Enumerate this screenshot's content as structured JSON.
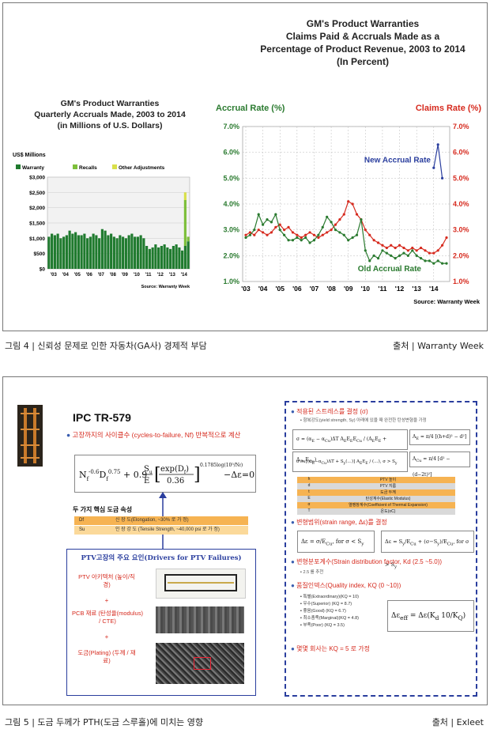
{
  "figure4": {
    "main_title": [
      "GM's Product Warranties",
      "Claims Paid & Accruals Made as a",
      "Percentage of Product Revenue, 2003 to 2014",
      "(In Percent)"
    ],
    "left_title": [
      "GM's Product Warranties",
      "Quarterly Accruals Made, 2003 to 2014",
      "(in Millions of U.S. Dollars)"
    ],
    "caption": "그림 4 | 신뢰성 문제로 인한 자동차(GA사) 경제적 부담",
    "source": "출처 | Warranty Week"
  },
  "bar_chart": {
    "type": "bar",
    "ylabel": "US$ Millions",
    "legend": [
      "Warranty",
      "Recalls",
      "Other Adjustments"
    ],
    "colors": {
      "warranty": "#1f7a2e",
      "recalls": "#7dbf3a",
      "other": "#d9e04a"
    },
    "yticks": [
      "$3,000",
      "$2,500",
      "$2,000",
      "$1,500",
      "$1,000",
      "$500",
      "$0"
    ],
    "ylim": [
      0,
      3000
    ],
    "xticks": [
      "'03",
      "'04",
      "'05",
      "'06",
      "'07",
      "'08",
      "'09",
      "'10",
      "'11",
      "'12",
      "'13",
      "'14"
    ],
    "warranty": [
      1050,
      1150,
      1100,
      1150,
      1000,
      1050,
      1100,
      1250,
      1150,
      1200,
      1100,
      1100,
      1150,
      1000,
      1050,
      1150,
      1100,
      1000,
      1300,
      1250,
      1100,
      1150,
      1050,
      1000,
      1100,
      1050,
      1000,
      1100,
      1150,
      1050,
      1050,
      1100,
      1000,
      750,
      650,
      700,
      800,
      700,
      750,
      800,
      700,
      650,
      750,
      800,
      700,
      600,
      750,
      900
    ],
    "recalls": [
      0,
      0,
      0,
      0,
      0,
      0,
      0,
      0,
      0,
      0,
      0,
      0,
      0,
      0,
      0,
      0,
      0,
      0,
      0,
      0,
      0,
      0,
      0,
      0,
      0,
      0,
      0,
      0,
      0,
      0,
      0,
      0,
      0,
      0,
      0,
      0,
      0,
      0,
      0,
      0,
      0,
      0,
      0,
      0,
      0,
      0,
      1500,
      150
    ],
    "other": [
      0,
      0,
      0,
      0,
      0,
      0,
      0,
      0,
      0,
      0,
      0,
      0,
      0,
      0,
      0,
      0,
      0,
      0,
      0,
      0,
      0,
      0,
      0,
      0,
      0,
      0,
      0,
      0,
      0,
      0,
      0,
      0,
      0,
      0,
      0,
      0,
      0,
      0,
      0,
      0,
      0,
      0,
      0,
      0,
      0,
      0,
      250,
      0
    ],
    "source": "Source: Warranty Week"
  },
  "chart_data": [
    {
      "type": "line",
      "left_axis_title": "Accrual Rate (%)",
      "right_axis_title": "Claims Rate (%)",
      "yticks": [
        "7.0%",
        "6.0%",
        "5.0%",
        "4.0%",
        "3.0%",
        "2.0%",
        "1.0%"
      ],
      "ylim": [
        1.0,
        7.0
      ],
      "xticks": [
        "'03",
        "'04",
        "'05",
        "'06",
        "'07",
        "'08",
        "'09",
        "'10",
        "'11",
        "'12",
        "'13",
        "'14"
      ],
      "annotations": [
        "New Accrual Rate",
        "Old Accrual Rate"
      ],
      "source": "Source: Warranty Week",
      "series": [
        {
          "name": "Claims",
          "color": "#d62a1e",
          "values": [
            2.8,
            2.9,
            2.8,
            3.0,
            2.9,
            2.8,
            2.9,
            3.1,
            3.2,
            3.0,
            3.1,
            2.9,
            2.8,
            2.7,
            2.8,
            2.9,
            2.8,
            2.7,
            2.8,
            2.9,
            3.0,
            3.2,
            3.4,
            3.6,
            4.1,
            4.0,
            3.6,
            3.4,
            3.0,
            2.8,
            2.6,
            2.5,
            2.4,
            2.3,
            2.4,
            2.3,
            2.4,
            2.3,
            2.2,
            2.3,
            2.2,
            2.3,
            2.2,
            2.1,
            2.1,
            2.2,
            2.4,
            2.7
          ]
        },
        {
          "name": "Accrual",
          "color": "#2a7a2f",
          "values": [
            2.7,
            2.8,
            3.0,
            3.6,
            3.2,
            3.4,
            3.3,
            3.6,
            3.0,
            2.8,
            2.6,
            2.6,
            2.7,
            2.6,
            2.7,
            2.5,
            2.6,
            2.8,
            3.1,
            3.5,
            3.3,
            3.0,
            2.9,
            2.8,
            2.6,
            2.7,
            2.8,
            3.4,
            2.2,
            1.8,
            2.0,
            1.9,
            2.2,
            2.1,
            2.0,
            1.9,
            2.0,
            2.1,
            2.0,
            2.2,
            2.0,
            1.9,
            1.8,
            1.8,
            1.7,
            1.8,
            1.7,
            1.7
          ]
        },
        {
          "name": "New Accrual",
          "color": "#2a3e9e",
          "values": [
            null,
            null,
            null,
            null,
            null,
            null,
            null,
            null,
            null,
            null,
            null,
            null,
            null,
            null,
            null,
            null,
            null,
            null,
            null,
            null,
            null,
            null,
            null,
            null,
            null,
            null,
            null,
            null,
            null,
            null,
            null,
            null,
            null,
            null,
            null,
            null,
            null,
            null,
            null,
            null,
            null,
            null,
            null,
            null,
            5.4,
            6.3,
            5.0,
            null
          ]
        }
      ]
    }
  ],
  "figure5": {
    "title": "IPC TR-579",
    "bullet1": "고장까지의 사이클수 (cycles-to-failure, Nf) 반복적으로 계산",
    "formula": "N_f^-0.6 D_f^0.75 + 0.9 (S_u/E)[exp(D_f)/0.36]^0.1785log(10^5/N_f) − Δε = 0",
    "table_title": "두 가지 핵심 도금 속성",
    "table": [
      {
        "sym": "Df",
        "desc": "신 장 도(Elongation, ~30% 로 가 정)"
      },
      {
        "sym": "Su",
        "desc": "인 장 강 도 (Tensile Strength, ~40,000 psi 로 가 정)"
      }
    ],
    "drivers_title": "PTV고장의 주요 요인(Drivers for PTV Failures)",
    "driver_items": [
      "PTV 아키텍처 (높이/직경)",
      "PCB 재료 (탄성율(modulus) / CTE)",
      "도금(Plating) (두께 / 재료)"
    ],
    "plus": "+",
    "right": {
      "h1": "적용된 스트레스를 결정 (σ)",
      "h1_sub": "항복강도(yield strength, Sy) 아래에 있을 때 완전한 탄성변형을 가정",
      "params": [
        {
          "s": "h",
          "d": "PTV 높이"
        },
        {
          "s": "d",
          "d": "PTV 지름"
        },
        {
          "s": "t",
          "d": "도금 두께"
        },
        {
          "s": "E",
          "d": "탄성계수(Elastic Modulus)"
        },
        {
          "s": "α",
          "d": "열팽창계수(Coefficient of Thermal Expansion)"
        },
        {
          "s": "T",
          "d": "온도(oC)"
        }
      ],
      "h2": "변형범위(strain range, Δε)를 결정",
      "h3": "변형분포계수(Strain distribution factor, Kd (2.5 ~5.0))",
      "h3_sub": "2.5 를 추천",
      "h4": "품질인덱스(Quality index, KQ (0 ~10))",
      "quality": [
        "특별(Extraordinary)(KQ = 10)",
        "우수(Superior)      (KQ = 8.7)",
        "좋음(Good)          (KQ = 6.7)",
        "최소충족(Marginal)(KQ = 4.8)",
        "부족(Poor)          (KQ = 3.5)"
      ],
      "h5": "몇몇 회사는 KQ = 5 로 가정"
    },
    "caption": "그림 5 | 도금 두께가 PTH(도금 스루홀)에 미치는 영향",
    "source": "출처 | Exleet"
  }
}
